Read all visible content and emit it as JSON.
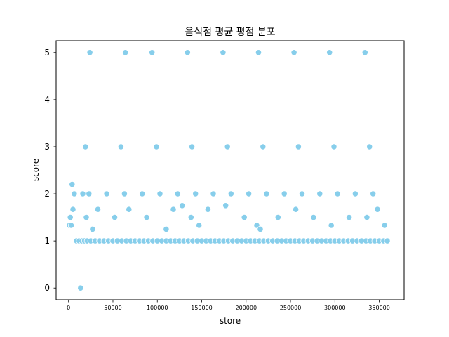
{
  "chart_data": {
    "type": "scatter",
    "title": "음식점 평균 평점 분포",
    "xlabel": "store",
    "ylabel": "score",
    "xlim": [
      -14000,
      378000
    ],
    "ylim": [
      -0.25,
      5.25
    ],
    "x_ticks": [
      0,
      50000,
      100000,
      150000,
      200000,
      250000,
      300000,
      350000
    ],
    "x_tick_labels": [
      "0",
      "50000",
      "100000",
      "150000",
      "200000",
      "250000",
      "300000",
      "350000"
    ],
    "y_ticks": [
      0,
      1,
      2,
      3,
      4,
      5
    ],
    "y_tick_labels": [
      "0",
      "1",
      "2",
      "3",
      "4",
      "5"
    ],
    "grid": false,
    "legend": "none",
    "marker_color": "#87CEEB",
    "marker_edge_color": "#ffffff",
    "series": [
      {
        "x": [
          13500,
          1000,
          3000,
          5000,
          2000,
          4000,
          6500,
          9000,
          12000,
          15000,
          18000,
          21000,
          25000,
          30000,
          35000,
          40000,
          45000,
          50000,
          55000,
          60000,
          65000,
          70000,
          75000,
          80000,
          85000,
          90000,
          95000,
          100000,
          105000,
          110000,
          115000,
          120000,
          125000,
          130000,
          135000,
          140000,
          145000,
          150000,
          155000,
          160000,
          165000,
          170000,
          175000,
          180000,
          185000,
          190000,
          195000,
          200000,
          205000,
          210000,
          215000,
          220000,
          225000,
          230000,
          235000,
          240000,
          245000,
          250000,
          255000,
          260000,
          265000,
          270000,
          275000,
          280000,
          285000,
          290000,
          295000,
          300000,
          305000,
          310000,
          315000,
          320000,
          325000,
          330000,
          335000,
          340000,
          345000,
          350000,
          355000,
          359000,
          20000,
          27000,
          33000,
          52000,
          68000,
          88000,
          110000,
          118000,
          128000,
          138000,
          147000,
          157000,
          177000,
          198000,
          212000,
          216000,
          236000,
          256000,
          276000,
          296000,
          316000,
          336000,
          348000,
          356000,
          16000,
          23000,
          43000,
          63000,
          83000,
          103000,
          123000,
          143000,
          163000,
          183000,
          203000,
          223000,
          243000,
          263000,
          283000,
          303000,
          323000,
          343000,
          24000,
          64000,
          94000,
          134000,
          174000,
          214000,
          254000,
          294000,
          334000,
          19000,
          59000,
          99000,
          139000,
          179000,
          219000,
          259000,
          299000,
          339000
        ],
        "y": [
          0,
          1.33,
          1.33,
          1.67,
          1.5,
          2.2,
          2.0,
          1.0,
          1.0,
          1.0,
          1.0,
          1.0,
          1.0,
          1.0,
          1.0,
          1.0,
          1.0,
          1.0,
          1.0,
          1.0,
          1.0,
          1.0,
          1.0,
          1.0,
          1.0,
          1.0,
          1.0,
          1.0,
          1.0,
          1.0,
          1.0,
          1.0,
          1.0,
          1.0,
          1.0,
          1.0,
          1.0,
          1.0,
          1.0,
          1.0,
          1.0,
          1.0,
          1.0,
          1.0,
          1.0,
          1.0,
          1.0,
          1.0,
          1.0,
          1.0,
          1.0,
          1.0,
          1.0,
          1.0,
          1.0,
          1.0,
          1.0,
          1.0,
          1.0,
          1.0,
          1.0,
          1.0,
          1.0,
          1.0,
          1.0,
          1.0,
          1.0,
          1.0,
          1.0,
          1.0,
          1.0,
          1.0,
          1.0,
          1.0,
          1.0,
          1.0,
          1.0,
          1.0,
          1.0,
          1.0,
          1.5,
          1.25,
          1.67,
          1.5,
          1.67,
          1.5,
          1.25,
          1.67,
          1.75,
          1.5,
          1.33,
          1.67,
          1.75,
          1.5,
          1.33,
          1.25,
          1.5,
          1.67,
          1.5,
          1.33,
          1.5,
          1.5,
          1.67,
          1.33,
          2.0,
          2.0,
          2.0,
          2.0,
          2.0,
          2.0,
          2.0,
          2.0,
          2.0,
          2.0,
          2.0,
          2.0,
          2.0,
          2.0,
          2.0,
          2.0,
          2.0,
          2.0,
          5.0,
          5.0,
          5.0,
          5.0,
          5.0,
          5.0,
          5.0,
          5.0,
          5.0,
          3.0,
          3.0,
          3.0,
          3.0,
          3.0,
          3.0,
          3.0,
          3.0,
          3.0
        ]
      }
    ]
  }
}
